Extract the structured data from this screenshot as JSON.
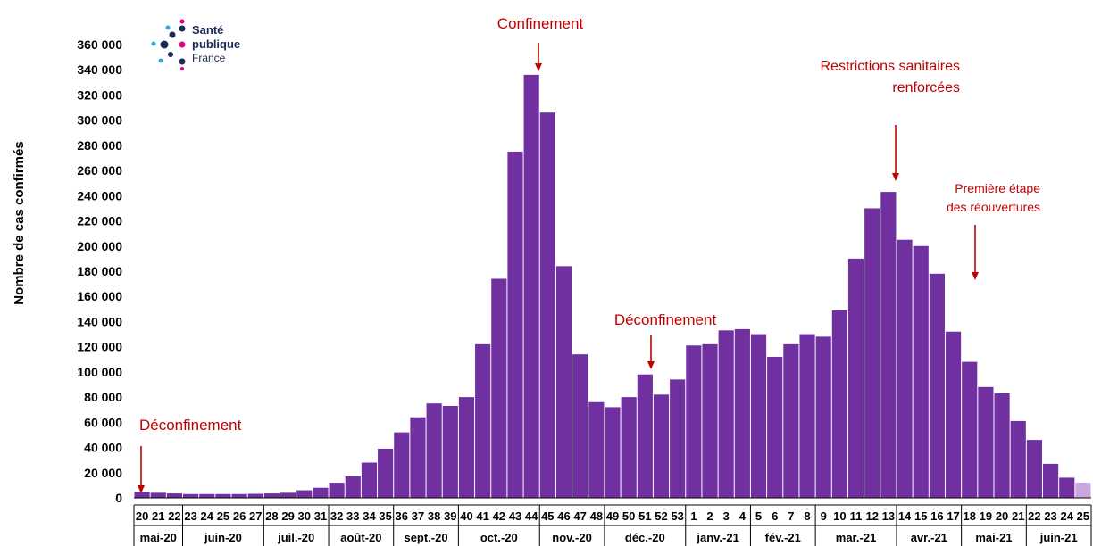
{
  "logo": {
    "line1": "Santé",
    "line2": "publique",
    "line3": "France",
    "colors": {
      "navy": "#1b2a57",
      "pink": "#e5007e",
      "cyan": "#29abe2"
    }
  },
  "chart_data": {
    "type": "bar",
    "title": "",
    "xlabel": "",
    "ylabel": "Nombre de cas confirmés",
    "ylim": [
      0,
      360000
    ],
    "yticks": [
      0,
      20000,
      40000,
      60000,
      80000,
      100000,
      120000,
      140000,
      160000,
      180000,
      200000,
      220000,
      240000,
      260000,
      280000,
      300000,
      320000,
      340000,
      360000
    ],
    "ytick_labels": [
      "0",
      "20 000",
      "40 000",
      "60 000",
      "80 000",
      "100 000",
      "120 000",
      "140 000",
      "160 000",
      "180 000",
      "200 000",
      "220 000",
      "240 000",
      "260 000",
      "280 000",
      "300 000",
      "320 000",
      "340 000",
      "360 000"
    ],
    "grid": false,
    "bar_color": "#7030a0",
    "partial_bar_color": "#c9a6e0",
    "categories": [
      "20",
      "21",
      "22",
      "23",
      "24",
      "25",
      "26",
      "27",
      "28",
      "29",
      "30",
      "31",
      "32",
      "33",
      "34",
      "35",
      "36",
      "37",
      "38",
      "39",
      "40",
      "41",
      "42",
      "43",
      "44",
      "45",
      "46",
      "47",
      "48",
      "49",
      "50",
      "51",
      "52",
      "53",
      "1",
      "2",
      "3",
      "4",
      "5",
      "6",
      "7",
      "8",
      "9",
      "10",
      "11",
      "12",
      "13",
      "14",
      "15",
      "16",
      "17",
      "18",
      "19",
      "20",
      "21",
      "22",
      "23",
      "24",
      "25"
    ],
    "values": [
      4500,
      4000,
      3500,
      3000,
      3000,
      3000,
      3000,
      3200,
      3500,
      4000,
      6000,
      8000,
      12000,
      17000,
      28000,
      39000,
      52000,
      64000,
      75000,
      73000,
      80000,
      122000,
      174000,
      275000,
      336000,
      306000,
      184000,
      114000,
      76000,
      72000,
      80000,
      98000,
      82000,
      94000,
      121000,
      122000,
      133000,
      134000,
      130000,
      112000,
      122000,
      130000,
      128000,
      149000,
      190000,
      230000,
      243000,
      205000,
      200000,
      178000,
      132000,
      108000,
      88000,
      83000,
      61000,
      46000,
      27000,
      16000,
      12000
    ],
    "partial_last": true,
    "months": [
      {
        "label": "mai-20",
        "weeks": 3
      },
      {
        "label": "juin-20",
        "weeks": 5
      },
      {
        "label": "juil.-20",
        "weeks": 4
      },
      {
        "label": "août-20",
        "weeks": 4
      },
      {
        "label": "sept.-20",
        "weeks": 4
      },
      {
        "label": "oct.-20",
        "weeks": 5
      },
      {
        "label": "nov.-20",
        "weeks": 4
      },
      {
        "label": "déc.-20",
        "weeks": 5
      },
      {
        "label": "janv.-21",
        "weeks": 4
      },
      {
        "label": "fév.-21",
        "weeks": 4
      },
      {
        "label": "mar.-21",
        "weeks": 5
      },
      {
        "label": "avr.-21",
        "weeks": 4
      },
      {
        "label": "mai-21",
        "weeks": 4
      },
      {
        "label": "juin-21",
        "weeks": 4
      }
    ],
    "annotations": [
      {
        "name": "annotation-deconfinement-1",
        "lines": [
          "Déconfinement"
        ],
        "bar_index": 0
      },
      {
        "name": "annotation-confinement",
        "lines": [
          "Confinement"
        ],
        "bar_index": 24
      },
      {
        "name": "annotation-deconfinement-2",
        "lines": [
          "Déconfinement"
        ],
        "bar_index": 31
      },
      {
        "name": "annotation-restrictions",
        "lines": [
          "Restrictions sanitaires",
          "renforcées"
        ],
        "bar_index": 46
      },
      {
        "name": "annotation-reouvertures",
        "lines": [
          "Première étape",
          "des réouvertures"
        ],
        "bar_index": 51
      }
    ]
  }
}
